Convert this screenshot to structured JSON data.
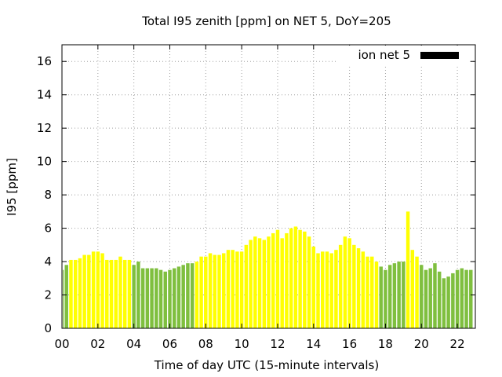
{
  "chart_data": {
    "type": "bar",
    "title": "Total I95 zenith [ppm] on NET 5, DoY=205",
    "xlabel": "Time of day UTC (15-minute intervals)",
    "ylabel": "I95 [ppm]",
    "xlim": [
      0,
      23
    ],
    "ylim": [
      0,
      17
    ],
    "x_ticks": [
      "00",
      "02",
      "04",
      "06",
      "08",
      "10",
      "12",
      "14",
      "16",
      "18",
      "20",
      "22"
    ],
    "y_ticks": [
      "0",
      "2",
      "4",
      "6",
      "8",
      "10",
      "12",
      "14",
      "16"
    ],
    "grid": true,
    "legend_position": "top-right",
    "legend": [
      {
        "name": "ion net 5",
        "color": "#000000"
      }
    ],
    "colors": {
      "green": "#7fbf3f",
      "yellow": "#ffff00"
    },
    "interval_hours": 0.25,
    "values": [
      3.5,
      3.8,
      4.1,
      4.1,
      4.2,
      4.4,
      4.4,
      4.6,
      4.6,
      4.5,
      4.1,
      4.1,
      4.1,
      4.3,
      4.1,
      4.1,
      3.8,
      4.0,
      3.6,
      3.6,
      3.6,
      3.6,
      3.5,
      3.4,
      3.5,
      3.6,
      3.7,
      3.8,
      3.9,
      3.9,
      4.0,
      4.3,
      4.3,
      4.5,
      4.4,
      4.4,
      4.5,
      4.7,
      4.7,
      4.6,
      4.6,
      5.0,
      5.3,
      5.5,
      5.4,
      5.3,
      5.5,
      5.7,
      5.9,
      5.4,
      5.7,
      6.0,
      6.1,
      5.9,
      5.8,
      5.5,
      4.9,
      4.5,
      4.6,
      4.6,
      4.5,
      4.7,
      5.0,
      5.5,
      5.4,
      5.0,
      4.8,
      4.6,
      4.3,
      4.3,
      4.0,
      3.7,
      3.5,
      3.8,
      3.9,
      4.0,
      4.0,
      7.0,
      4.7,
      4.3,
      3.8,
      3.5,
      3.6,
      3.9,
      3.4,
      3.0,
      3.1,
      3.3,
      3.5,
      3.6,
      3.5,
      3.5
    ],
    "bar_colors": [
      "green",
      "green",
      "yellow",
      "yellow",
      "yellow",
      "yellow",
      "yellow",
      "yellow",
      "yellow",
      "yellow",
      "yellow",
      "yellow",
      "yellow",
      "yellow",
      "yellow",
      "yellow",
      "green",
      "green",
      "green",
      "green",
      "green",
      "green",
      "green",
      "green",
      "green",
      "green",
      "green",
      "green",
      "green",
      "green",
      "yellow",
      "yellow",
      "yellow",
      "yellow",
      "yellow",
      "yellow",
      "yellow",
      "yellow",
      "yellow",
      "yellow",
      "yellow",
      "yellow",
      "yellow",
      "yellow",
      "yellow",
      "yellow",
      "yellow",
      "yellow",
      "yellow",
      "yellow",
      "yellow",
      "yellow",
      "yellow",
      "yellow",
      "yellow",
      "yellow",
      "yellow",
      "yellow",
      "yellow",
      "yellow",
      "yellow",
      "yellow",
      "yellow",
      "yellow",
      "yellow",
      "yellow",
      "yellow",
      "yellow",
      "yellow",
      "yellow",
      "yellow",
      "green",
      "green",
      "green",
      "green",
      "green",
      "green",
      "yellow",
      "yellow",
      "yellow",
      "green",
      "green",
      "green",
      "green",
      "green",
      "green",
      "green",
      "green",
      "green",
      "green",
      "green",
      "green"
    ]
  }
}
